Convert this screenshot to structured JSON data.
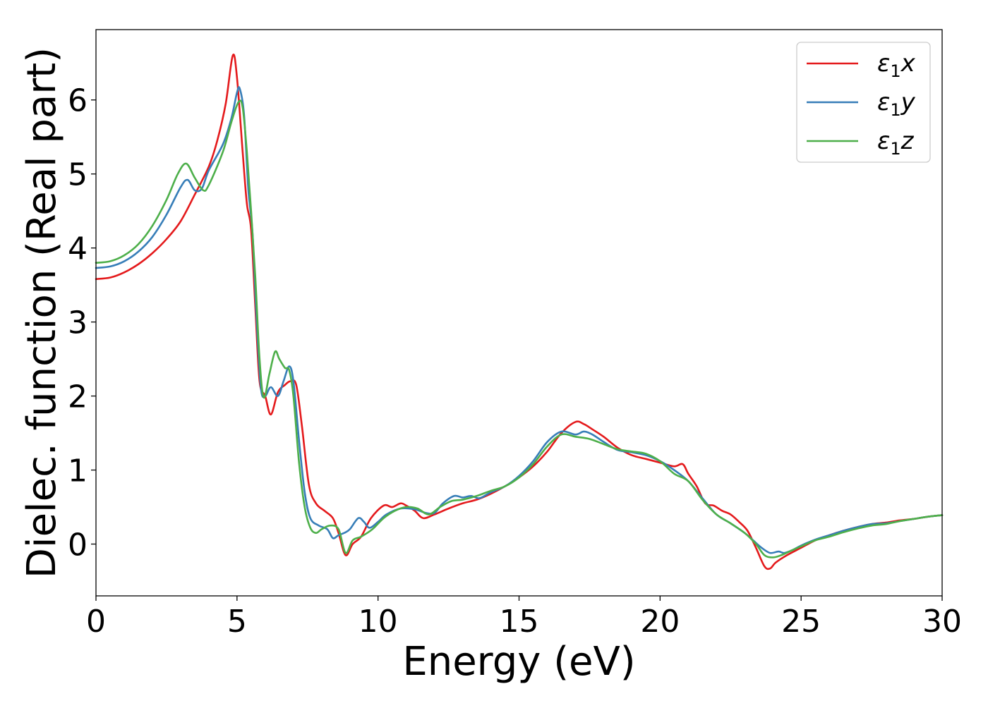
{
  "chart_data": {
    "type": "line",
    "title": "",
    "xlabel": "Energy (eV)",
    "ylabel": "Dielec. function (Real part)",
    "xlim": [
      0,
      30
    ],
    "ylim": [
      -0.7,
      6.95
    ],
    "xticks": [
      0,
      5,
      10,
      15,
      20,
      25,
      30
    ],
    "xtick_labels": [
      "0",
      "5",
      "10",
      "15",
      "20",
      "25",
      "30"
    ],
    "yticks": [
      0,
      1,
      2,
      3,
      4,
      5,
      6
    ],
    "ytick_labels": [
      "0",
      "1",
      "2",
      "3",
      "4",
      "5",
      "6"
    ],
    "grid": false,
    "legend_position": "top-right",
    "series": [
      {
        "name": "ε1x",
        "legend_base": "ε",
        "legend_sub": "1",
        "legend_var": "x",
        "color": "#e41a1c",
        "x": [
          0,
          0.5,
          1,
          1.5,
          2,
          2.5,
          3,
          3.5,
          4,
          4.3,
          4.6,
          4.85,
          5.0,
          5.2,
          5.35,
          5.5,
          5.65,
          5.8,
          6.0,
          6.2,
          6.45,
          6.7,
          6.9,
          7.1,
          7.3,
          7.55,
          7.8,
          8.1,
          8.4,
          8.6,
          8.85,
          9.1,
          9.4,
          9.75,
          10.2,
          10.5,
          10.8,
          11.0,
          11.3,
          11.6,
          12.0,
          12.5,
          13.0,
          13.5,
          14.0,
          14.5,
          15.0,
          15.5,
          16.0,
          16.5,
          17.0,
          17.3,
          17.6,
          18.0,
          18.5,
          19.0,
          19.5,
          20.0,
          20.5,
          20.8,
          21.0,
          21.3,
          21.6,
          21.9,
          22.2,
          22.5,
          22.8,
          23.1,
          23.4,
          23.7,
          23.9,
          24.1,
          24.5,
          25.0,
          25.5,
          26.0,
          26.5,
          27.0,
          27.5,
          28.0,
          28.5,
          29.0,
          29.5,
          30.0
        ],
        "y": [
          3.58,
          3.6,
          3.67,
          3.78,
          3.93,
          4.12,
          4.36,
          4.72,
          5.1,
          5.45,
          5.95,
          6.6,
          6.3,
          5.3,
          4.6,
          4.25,
          3.2,
          2.2,
          2.0,
          1.75,
          2.05,
          2.15,
          2.2,
          2.15,
          1.6,
          0.8,
          0.55,
          0.45,
          0.35,
          0.15,
          -0.15,
          0.0,
          0.1,
          0.35,
          0.52,
          0.5,
          0.55,
          0.52,
          0.45,
          0.35,
          0.4,
          0.48,
          0.55,
          0.6,
          0.68,
          0.78,
          0.9,
          1.05,
          1.25,
          1.5,
          1.65,
          1.62,
          1.55,
          1.45,
          1.3,
          1.2,
          1.15,
          1.1,
          1.05,
          1.08,
          0.95,
          0.78,
          0.55,
          0.52,
          0.45,
          0.4,
          0.3,
          0.18,
          -0.05,
          -0.3,
          -0.33,
          -0.25,
          -0.15,
          -0.05,
          0.05,
          0.12,
          0.18,
          0.23,
          0.27,
          0.29,
          0.32,
          0.34,
          0.37,
          0.39
        ]
      },
      {
        "name": "ε1y",
        "legend_base": "ε",
        "legend_sub": "1",
        "legend_var": "y",
        "color": "#377eb8",
        "x": [
          0,
          0.5,
          1,
          1.5,
          2,
          2.5,
          3,
          3.25,
          3.5,
          3.75,
          4.0,
          4.5,
          4.8,
          5.0,
          5.1,
          5.25,
          5.4,
          5.55,
          5.7,
          5.85,
          6.0,
          6.2,
          6.45,
          6.65,
          6.85,
          7.0,
          7.2,
          7.4,
          7.6,
          7.9,
          8.2,
          8.4,
          8.6,
          8.8,
          9.0,
          9.3,
          9.5,
          9.7,
          10.0,
          10.3,
          10.8,
          11.3,
          11.7,
          12.0,
          12.3,
          12.7,
          13.0,
          13.3,
          13.6,
          14.0,
          14.5,
          15.0,
          15.5,
          16.0,
          16.5,
          17.0,
          17.3,
          17.6,
          18.0,
          18.5,
          19.0,
          19.5,
          20.0,
          20.5,
          21.0,
          21.5,
          22.0,
          22.5,
          23.0,
          23.3,
          23.6,
          23.9,
          24.2,
          24.4,
          24.7,
          25.0,
          25.5,
          26.0,
          26.5,
          27.0,
          27.5,
          28.0,
          28.5,
          29.0,
          29.5,
          30.0
        ],
        "y": [
          3.73,
          3.75,
          3.82,
          3.95,
          4.15,
          4.45,
          4.82,
          4.92,
          4.78,
          4.8,
          5.05,
          5.4,
          5.75,
          6.1,
          6.15,
          5.8,
          4.8,
          4.2,
          3.0,
          2.1,
          2.0,
          2.12,
          2.0,
          2.2,
          2.4,
          2.2,
          1.4,
          0.7,
          0.35,
          0.25,
          0.2,
          0.08,
          0.12,
          0.15,
          0.2,
          0.35,
          0.3,
          0.22,
          0.3,
          0.4,
          0.48,
          0.47,
          0.42,
          0.42,
          0.55,
          0.65,
          0.63,
          0.65,
          0.62,
          0.7,
          0.78,
          0.92,
          1.12,
          1.38,
          1.52,
          1.48,
          1.52,
          1.48,
          1.38,
          1.27,
          1.24,
          1.2,
          1.12,
          1.0,
          0.85,
          0.62,
          0.4,
          0.28,
          0.15,
          0.05,
          -0.05,
          -0.12,
          -0.1,
          -0.12,
          -0.08,
          -0.02,
          0.06,
          0.12,
          0.18,
          0.23,
          0.27,
          0.28,
          0.31,
          0.34,
          0.37,
          0.39
        ]
      },
      {
        "name": "ε1z",
        "legend_base": "ε",
        "legend_sub": "1",
        "legend_var": "z",
        "color": "#4daf4a",
        "x": [
          0,
          0.5,
          1,
          1.5,
          2,
          2.5,
          2.9,
          3.2,
          3.5,
          3.8,
          4.0,
          4.5,
          4.8,
          5.05,
          5.2,
          5.35,
          5.5,
          5.65,
          5.8,
          5.95,
          6.15,
          6.35,
          6.5,
          6.7,
          6.85,
          7.0,
          7.2,
          7.4,
          7.6,
          7.8,
          8.0,
          8.3,
          8.6,
          8.85,
          9.1,
          9.4,
          9.8,
          10.2,
          10.6,
          11.0,
          11.4,
          11.8,
          12.2,
          12.6,
          13.0,
          13.5,
          14.0,
          14.5,
          15.0,
          15.5,
          16.0,
          16.5,
          17.0,
          17.5,
          18.0,
          18.5,
          19.0,
          19.5,
          20.0,
          20.5,
          21.0,
          21.5,
          22.0,
          22.5,
          23.0,
          23.4,
          23.7,
          24.0,
          24.3,
          24.7,
          25.0,
          25.5,
          26.0,
          26.5,
          27.0,
          27.5,
          28.0,
          28.5,
          29.0,
          29.5,
          30.0
        ],
        "y": [
          3.8,
          3.82,
          3.9,
          4.05,
          4.3,
          4.65,
          5.0,
          5.14,
          4.95,
          4.78,
          4.85,
          5.3,
          5.7,
          5.97,
          5.9,
          5.3,
          4.5,
          3.6,
          2.5,
          1.98,
          2.3,
          2.6,
          2.5,
          2.38,
          2.35,
          2.0,
          1.1,
          0.5,
          0.22,
          0.15,
          0.2,
          0.25,
          0.2,
          -0.12,
          0.05,
          0.1,
          0.2,
          0.35,
          0.45,
          0.5,
          0.48,
          0.4,
          0.5,
          0.58,
          0.6,
          0.65,
          0.72,
          0.78,
          0.9,
          1.08,
          1.32,
          1.48,
          1.45,
          1.42,
          1.35,
          1.28,
          1.25,
          1.22,
          1.12,
          0.95,
          0.85,
          0.6,
          0.4,
          0.28,
          0.15,
          0.0,
          -0.15,
          -0.18,
          -0.15,
          -0.08,
          -0.03,
          0.05,
          0.1,
          0.16,
          0.21,
          0.25,
          0.27,
          0.31,
          0.34,
          0.37,
          0.39
        ]
      }
    ]
  }
}
